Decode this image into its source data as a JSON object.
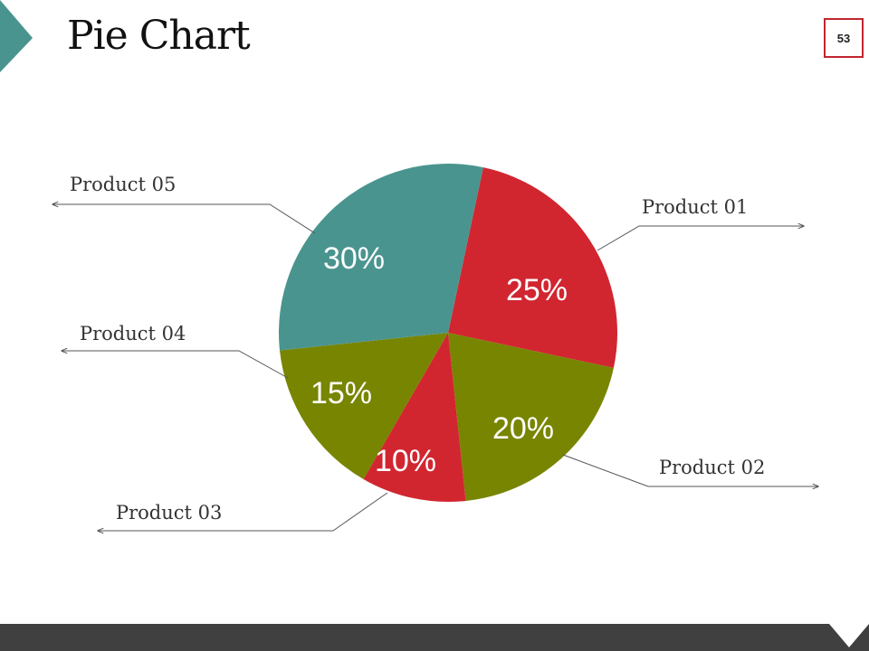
{
  "slide": {
    "title": "Pie Chart",
    "number": "53"
  },
  "colors": {
    "teal": "#4a948f",
    "red": "#d12630",
    "olive": "#788500",
    "footer": "#404040",
    "accent_border": "#c0262f"
  },
  "chart_data": {
    "type": "pie",
    "title": "Pie Chart",
    "start_angle_deg": 12,
    "direction": "clockwise",
    "slices": [
      {
        "label": "Product 01",
        "value": 25,
        "value_label": "25%",
        "color": "#d12630"
      },
      {
        "label": "Product 02",
        "value": 20,
        "value_label": "20%",
        "color": "#788500"
      },
      {
        "label": "Product 03",
        "value": 10,
        "value_label": "10%",
        "color": "#d12630"
      },
      {
        "label": "Product 04",
        "value": 15,
        "value_label": "15%",
        "color": "#788500"
      },
      {
        "label": "Product 05",
        "value": 30,
        "value_label": "30%",
        "color": "#4a948f"
      }
    ]
  }
}
